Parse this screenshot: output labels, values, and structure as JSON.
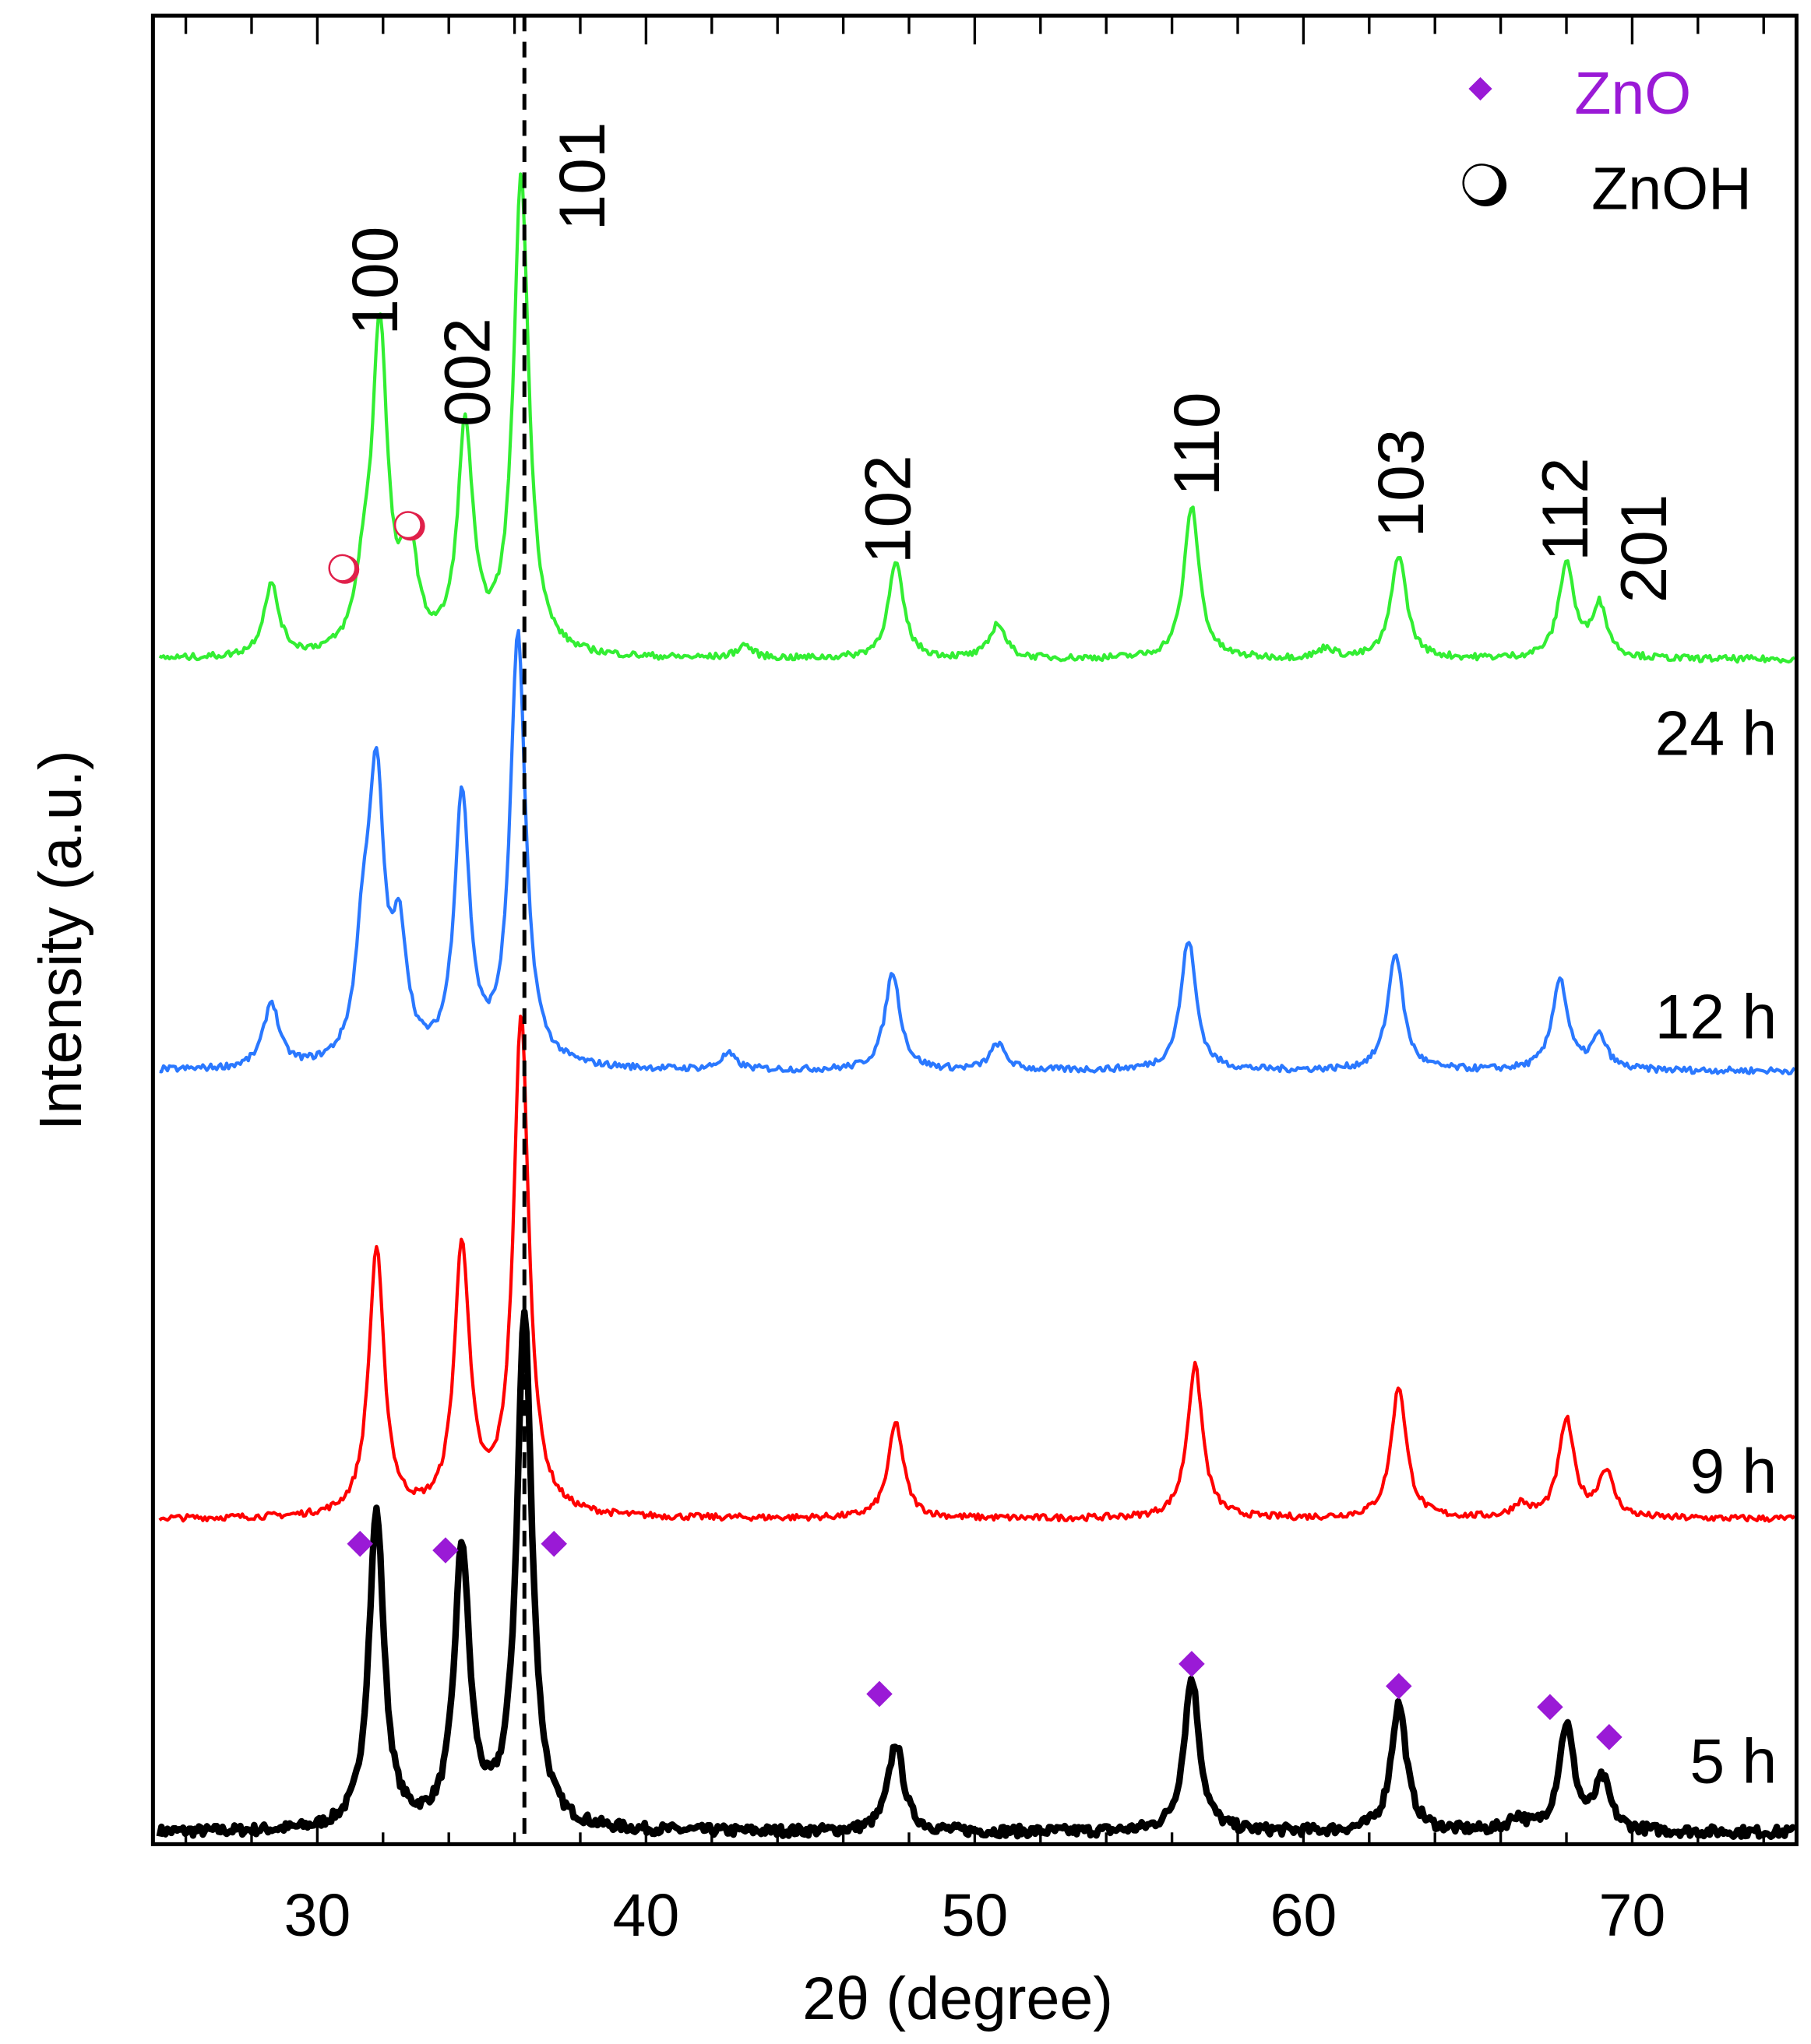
{
  "chart_data": {
    "type": "line",
    "xlabel": "2θ (degree)",
    "ylabel": "Intensity (a.u.)",
    "xlim": [
      25,
      75
    ],
    "xticks": [
      "30",
      "40",
      "50",
      "60",
      "70"
    ],
    "grid": false,
    "reference_line": {
      "x": 36.3,
      "style": "dashed",
      "color": "#000000"
    },
    "series": [
      {
        "name": "5 h",
        "color": "#000000",
        "offset": 0,
        "peaks": [
          [
            31.8,
            243
          ],
          [
            34.4,
            213
          ],
          [
            36.3,
            393
          ],
          [
            47.6,
            68
          ],
          [
            56.6,
            118
          ],
          [
            62.9,
            98
          ],
          [
            68.0,
            81
          ],
          [
            69.1,
            38
          ],
          [
            66.5,
            10
          ]
        ]
      },
      {
        "name": "9 h",
        "color": "#ff0000",
        "offset": 240,
        "peaks": [
          [
            31.8,
            205
          ],
          [
            34.4,
            205
          ],
          [
            36.2,
            383
          ],
          [
            47.6,
            73
          ],
          [
            56.7,
            117
          ],
          [
            62.9,
            101
          ],
          [
            68.0,
            75
          ],
          [
            69.2,
            35
          ],
          [
            66.6,
            10
          ]
        ]
      },
      {
        "name": "12 h",
        "color": "#2a78ff",
        "offset": 583,
        "peaks": [
          [
            31.8,
            205
          ],
          [
            34.4,
            205
          ],
          [
            36.1,
            330
          ],
          [
            47.5,
            75
          ],
          [
            56.5,
            100
          ],
          [
            62.8,
            90
          ],
          [
            67.8,
            70
          ],
          [
            50.7,
            20
          ],
          [
            28.6,
            50
          ],
          [
            32.5,
            90
          ],
          [
            31.4,
            80
          ],
          [
            69.0,
            25
          ],
          [
            42.5,
            12
          ]
        ]
      },
      {
        "name": "24 h",
        "color": "#33ee33",
        "offset": 898,
        "peaks": [
          [
            31.9,
            247
          ],
          [
            34.5,
            172
          ],
          [
            36.2,
            367
          ],
          [
            32.8,
            80
          ],
          [
            28.6,
            55
          ],
          [
            31.4,
            43
          ],
          [
            47.6,
            73
          ],
          [
            50.7,
            27
          ],
          [
            56.6,
            117
          ],
          [
            62.9,
            80
          ],
          [
            68.0,
            73
          ],
          [
            69.0,
            40
          ],
          [
            60.7,
            8
          ],
          [
            43.0,
            10
          ]
        ]
      }
    ],
    "hkl_labels": [
      {
        "text": "100",
        "x": 31.8
      },
      {
        "text": "002",
        "x": 34.6
      },
      {
        "text": "101",
        "x": 38.1
      },
      {
        "text": "102",
        "x": 47.4
      },
      {
        "text": "110",
        "x": 56.8
      },
      {
        "text": "103",
        "x": 63.0
      },
      {
        "text": "112",
        "x": 68.0
      },
      {
        "text": "201",
        "x": 70.4
      }
    ],
    "zno_markers": [
      31.3,
      33.9,
      37.2,
      47.1,
      56.6,
      62.9,
      67.5,
      69.3
    ],
    "znoh_markers": [
      30.8,
      32.8
    ],
    "legend": {
      "placement": "top-right",
      "items": [
        {
          "label": "ZnO",
          "marker": "diamond",
          "color": "#9a1ad6"
        },
        {
          "label": "ZnOH",
          "marker": "circle",
          "color": "#000000"
        }
      ]
    }
  }
}
